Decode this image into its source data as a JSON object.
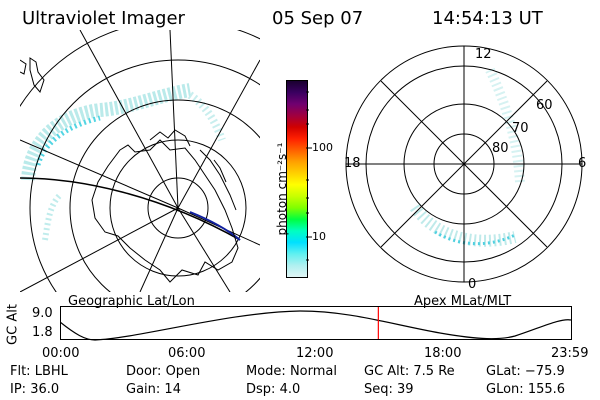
{
  "header": {
    "instrument": "Ultraviolet Imager",
    "date": "05 Sep 07",
    "time": "14:54:13 UT"
  },
  "left_map": {
    "caption": "Geographic Lat/Lon"
  },
  "right_map": {
    "caption": "Apex MLat/MLT",
    "mlt_labels": [
      "12",
      "18",
      "6",
      "0"
    ],
    "mlat_labels": [
      "60",
      "70",
      "80"
    ]
  },
  "colorbar": {
    "unit_label": "photon cm⁻²s⁻¹",
    "tick_labels": [
      "100",
      "10"
    ],
    "colors": [
      "#1a0030",
      "#3a0060",
      "#700070",
      "#a00040",
      "#d00000",
      "#ff2000",
      "#ff6000",
      "#ffa000",
      "#ffd000",
      "#ffff00",
      "#c8ff00",
      "#80ff00",
      "#00ff40",
      "#00ffc0",
      "#00e0ff",
      "#60f0f0",
      "#b0f0f0",
      "#e0f5f5"
    ]
  },
  "altitude_plot": {
    "y_axis_label": "GC Alt",
    "y_ticks": [
      "9.0",
      "1.8"
    ],
    "x_ticks": [
      "00:00",
      "06:00",
      "12:00",
      "18:00",
      "23:59"
    ],
    "current_time_fraction": 0.622,
    "marker_color": "#ff0000"
  },
  "footer": {
    "row1": [
      {
        "label": "Flt:",
        "value": "LBHL"
      },
      {
        "label": "Door:",
        "value": "Open"
      },
      {
        "label": "Mode:",
        "value": "Normal"
      },
      {
        "label": "GC Alt:",
        "value": "7.5 Re"
      },
      {
        "label": "GLat:",
        "value": "−75.9"
      }
    ],
    "row2": [
      {
        "label": "IP:",
        "value": "36.0"
      },
      {
        "label": "Gain:",
        "value": "14"
      },
      {
        "label": "Dsp:",
        "value": "4.0"
      },
      {
        "label": "Seq:",
        "value": "39"
      },
      {
        "label": "GLon:",
        "value": "155.6"
      }
    ]
  }
}
